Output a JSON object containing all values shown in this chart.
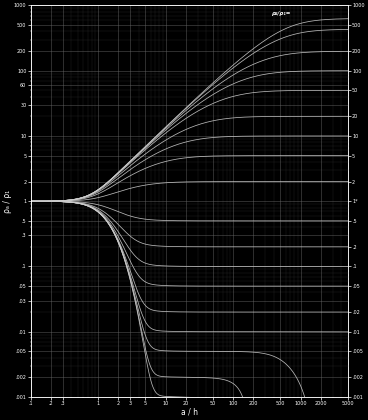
{
  "title": "",
  "xlabel": "a / h",
  "ylabel": "ρₐ / ρ₁",
  "xmin": 0.1,
  "xmax": 5000,
  "ymin": 0.001,
  "ymax": 1000,
  "background_color": "#000000",
  "grid_color": "#666666",
  "curve_color": "#cccccc",
  "label_color": "#ffffff",
  "rho2_rho1_values": [
    1000,
    500,
    200,
    100,
    50,
    20,
    10,
    5,
    2,
    0.5,
    0.2,
    0.1,
    0.05,
    0.02,
    0.01,
    0.005,
    0.002,
    0.001
  ],
  "ytick_vals": [
    0.001,
    0.002,
    0.005,
    0.01,
    0.03,
    0.05,
    0.1,
    0.3,
    0.5,
    1,
    2,
    5,
    10,
    30,
    60,
    100,
    200,
    500,
    1000
  ],
  "ytick_labels": [
    ".001",
    ".002",
    ".005",
    ".01",
    ".03",
    ".05",
    ".1",
    ".3",
    ".5",
    "1",
    "2",
    "5",
    "10",
    "30",
    "60",
    "100",
    "200",
    "500",
    "1000"
  ],
  "xtick_vals": [
    0.1,
    0.2,
    0.3,
    1,
    2,
    3,
    5,
    10,
    20,
    50,
    100,
    200,
    500,
    1000,
    2000,
    5000
  ],
  "xtick_labels": [
    ".1",
    ".2",
    ".3",
    "1",
    "2",
    "3",
    "5",
    "10",
    "20",
    "50",
    "100",
    "200",
    "500",
    "1000",
    "2000",
    "5000"
  ],
  "right_labels": [
    "1000",
    "500",
    "200",
    "100",
    "50",
    "20",
    "10",
    "5",
    "2",
    "1*",
    ".5",
    ".2",
    ".1",
    ".05",
    ".02",
    ".01",
    ".005",
    ".002",
    ".001"
  ],
  "right_label_yvals": [
    1000,
    500,
    200,
    100,
    50,
    20,
    10,
    5,
    2,
    1,
    0.5,
    0.2,
    0.1,
    0.05,
    0.02,
    0.01,
    0.005,
    0.002,
    0.001
  ],
  "header_label": "ρ₂/ρ₁="
}
